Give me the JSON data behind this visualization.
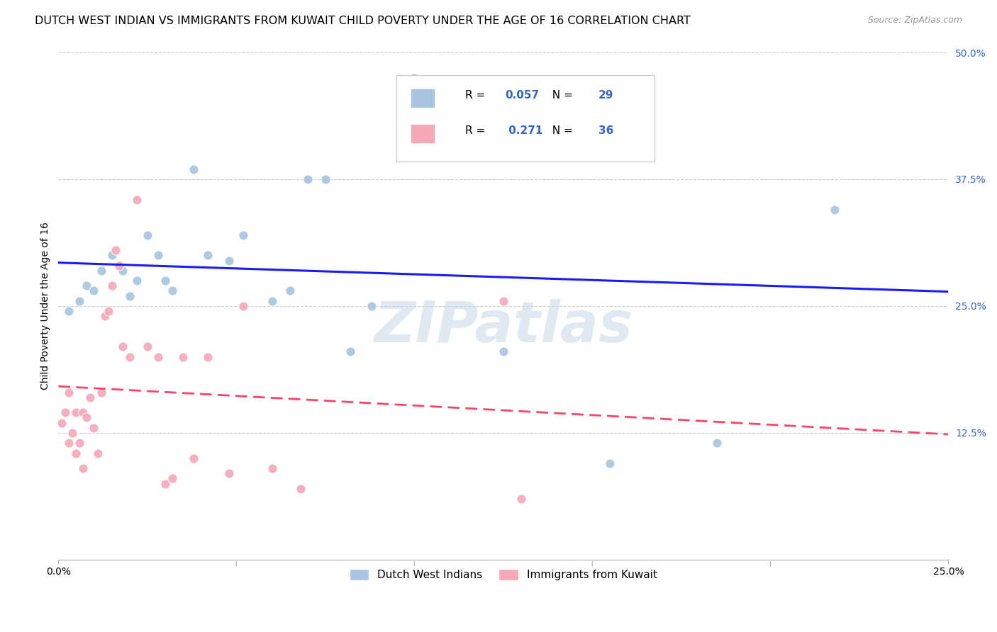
{
  "title": "DUTCH WEST INDIAN VS IMMIGRANTS FROM KUWAIT CHILD POVERTY UNDER THE AGE OF 16 CORRELATION CHART",
  "source": "Source: ZipAtlas.com",
  "ylabel": "Child Poverty Under the Age of 16",
  "ytick_values": [
    0.0,
    0.125,
    0.25,
    0.375,
    0.5
  ],
  "ytick_labels": [
    "",
    "12.5%",
    "25.0%",
    "37.5%",
    "50.0%"
  ],
  "xtick_values": [
    0.0,
    0.25
  ],
  "xtick_labels": [
    "0.0%",
    "25.0%"
  ],
  "xlim": [
    0.0,
    0.25
  ],
  "ylim": [
    0.0,
    0.5
  ],
  "legend_entry1": "Dutch West Indians",
  "legend_entry2": "Immigrants from Kuwait",
  "R1": "0.057",
  "N1": "29",
  "R2": "0.271",
  "N2": "36",
  "blue_color": "#a8c4e0",
  "pink_color": "#f4a8b8",
  "line_blue": "#1a1aff",
  "line_pink": "#ff4466",
  "line_pink_dash": [
    6,
    3
  ],
  "watermark": "ZIPatlas",
  "blue_points_x": [
    0.003,
    0.006,
    0.008,
    0.01,
    0.012,
    0.015,
    0.018,
    0.02,
    0.022,
    0.025,
    0.028,
    0.03,
    0.032,
    0.038,
    0.042,
    0.048,
    0.052,
    0.06,
    0.065,
    0.07,
    0.075,
    0.082,
    0.088,
    0.1,
    0.125,
    0.155,
    0.165,
    0.185,
    0.218
  ],
  "blue_points_y": [
    0.245,
    0.255,
    0.27,
    0.265,
    0.285,
    0.3,
    0.285,
    0.26,
    0.275,
    0.32,
    0.3,
    0.275,
    0.265,
    0.385,
    0.3,
    0.295,
    0.32,
    0.255,
    0.265,
    0.375,
    0.375,
    0.205,
    0.25,
    0.475,
    0.205,
    0.095,
    0.425,
    0.115,
    0.345
  ],
  "pink_points_x": [
    0.001,
    0.002,
    0.003,
    0.003,
    0.004,
    0.005,
    0.005,
    0.006,
    0.007,
    0.007,
    0.008,
    0.009,
    0.01,
    0.011,
    0.012,
    0.013,
    0.014,
    0.015,
    0.016,
    0.017,
    0.018,
    0.02,
    0.022,
    0.025,
    0.028,
    0.03,
    0.032,
    0.035,
    0.038,
    0.042,
    0.048,
    0.052,
    0.06,
    0.068,
    0.125,
    0.13
  ],
  "pink_points_y": [
    0.135,
    0.145,
    0.115,
    0.165,
    0.125,
    0.105,
    0.145,
    0.115,
    0.09,
    0.145,
    0.14,
    0.16,
    0.13,
    0.105,
    0.165,
    0.24,
    0.245,
    0.27,
    0.305,
    0.29,
    0.21,
    0.2,
    0.355,
    0.21,
    0.2,
    0.075,
    0.08,
    0.2,
    0.1,
    0.2,
    0.085,
    0.25,
    0.09,
    0.07,
    0.255,
    0.06
  ],
  "title_fontsize": 11.5,
  "axis_label_fontsize": 10,
  "tick_fontsize": 10,
  "source_fontsize": 9,
  "legend_fontsize": 11
}
